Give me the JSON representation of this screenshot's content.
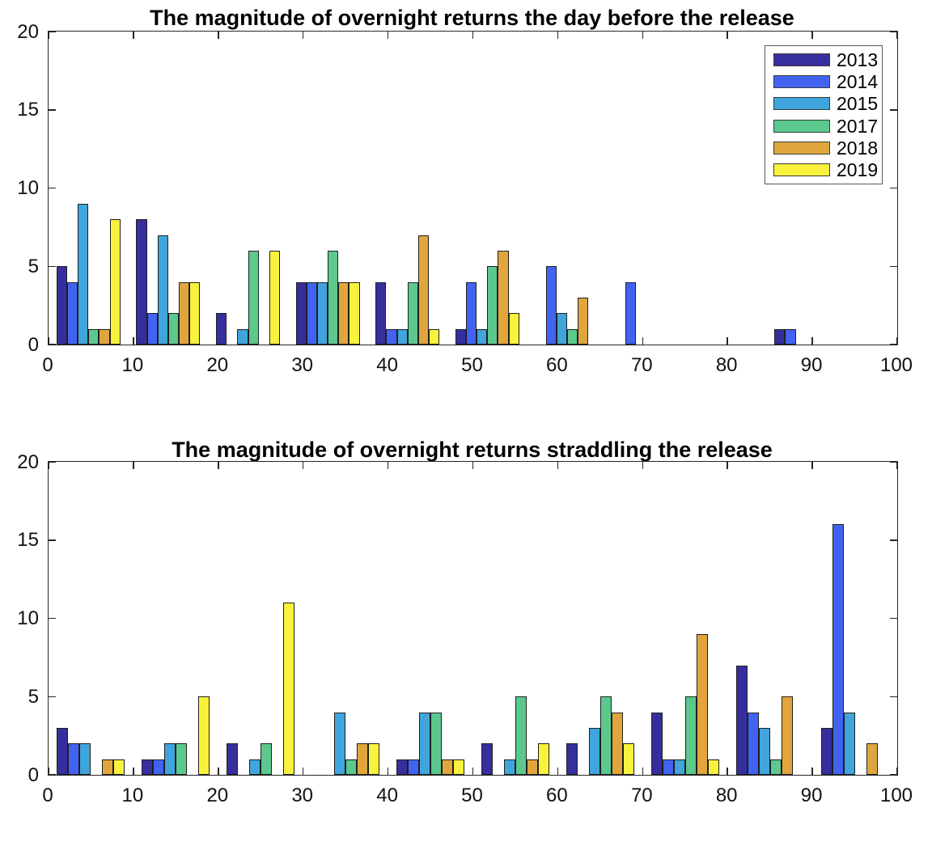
{
  "figure": {
    "background": "#ffffff",
    "axis_color": "#262626",
    "bar_edge_color": "#1f1f1f"
  },
  "chart_data": [
    {
      "type": "bar",
      "title": "The magnitude of overnight returns the day before the release",
      "xlabel": "",
      "ylabel": "",
      "xlim": [
        0,
        100
      ],
      "ylim": [
        0,
        20
      ],
      "xticks": [
        0,
        10,
        20,
        30,
        40,
        50,
        60,
        70,
        80,
        90,
        100
      ],
      "yticks": [
        0,
        5,
        10,
        15,
        20
      ],
      "grid": false,
      "bin_centers": [
        4.7,
        14.1,
        23.5,
        32.9,
        42.3,
        51.7,
        61.1,
        70.5,
        79.9,
        89.3
      ],
      "bin_width": 9.4,
      "bar_fraction": 0.8,
      "series": [
        {
          "name": "2013",
          "color": "#372E9E",
          "values": [
            5,
            8,
            2,
            4,
            4,
            1,
            0,
            0,
            0,
            1
          ]
        },
        {
          "name": "2014",
          "color": "#4263F2",
          "values": [
            4,
            2,
            0,
            4,
            1,
            4,
            5,
            4,
            0,
            1
          ]
        },
        {
          "name": "2015",
          "color": "#3FA5DC",
          "values": [
            9,
            7,
            1,
            4,
            1,
            1,
            2,
            0,
            0,
            0
          ]
        },
        {
          "name": "2017",
          "color": "#5BC98E",
          "values": [
            1,
            2,
            6,
            6,
            4,
            5,
            1,
            0,
            0,
            0
          ]
        },
        {
          "name": "2018",
          "color": "#E0A63D",
          "values": [
            1,
            4,
            0,
            4,
            7,
            6,
            3,
            0,
            0,
            0
          ]
        },
        {
          "name": "2019",
          "color": "#F9F23D",
          "values": [
            8,
            4,
            6,
            4,
            1,
            2,
            0,
            0,
            0,
            0
          ]
        }
      ],
      "legend": {
        "visible": true,
        "position": "top-right",
        "entries": [
          "2013",
          "2014",
          "2015",
          "2017",
          "2018",
          "2019"
        ]
      }
    },
    {
      "type": "bar",
      "title": "The magnitude of overnight returns straddling the release",
      "xlabel": "",
      "ylabel": "",
      "xlim": [
        0,
        100
      ],
      "ylim": [
        0,
        20
      ],
      "xticks": [
        0,
        10,
        20,
        30,
        40,
        50,
        60,
        70,
        80,
        90,
        100
      ],
      "yticks": [
        0,
        5,
        10,
        15,
        20
      ],
      "grid": false,
      "bin_centers": [
        5,
        15,
        25,
        35,
        45,
        55,
        65,
        75,
        85,
        95
      ],
      "bin_width": 10,
      "bar_fraction": 0.8,
      "series": [
        {
          "name": "2013",
          "color": "#372E9E",
          "values": [
            3,
            1,
            2,
            0,
            1,
            2,
            2,
            4,
            7,
            3
          ]
        },
        {
          "name": "2014",
          "color": "#4263F2",
          "values": [
            2,
            1,
            0,
            0,
            1,
            0,
            0,
            1,
            4,
            16
          ]
        },
        {
          "name": "2015",
          "color": "#3FA5DC",
          "values": [
            2,
            2,
            1,
            4,
            4,
            1,
            3,
            1,
            3,
            4
          ]
        },
        {
          "name": "2017",
          "color": "#5BC98E",
          "values": [
            0,
            2,
            2,
            1,
            4,
            5,
            5,
            5,
            1,
            0
          ]
        },
        {
          "name": "2018",
          "color": "#E0A63D",
          "values": [
            1,
            0,
            0,
            2,
            1,
            1,
            4,
            9,
            5,
            2
          ]
        },
        {
          "name": "2019",
          "color": "#F9F23D",
          "values": [
            1,
            5,
            11,
            2,
            1,
            2,
            2,
            1,
            0,
            0
          ]
        }
      ],
      "legend": {
        "visible": false
      }
    }
  ]
}
